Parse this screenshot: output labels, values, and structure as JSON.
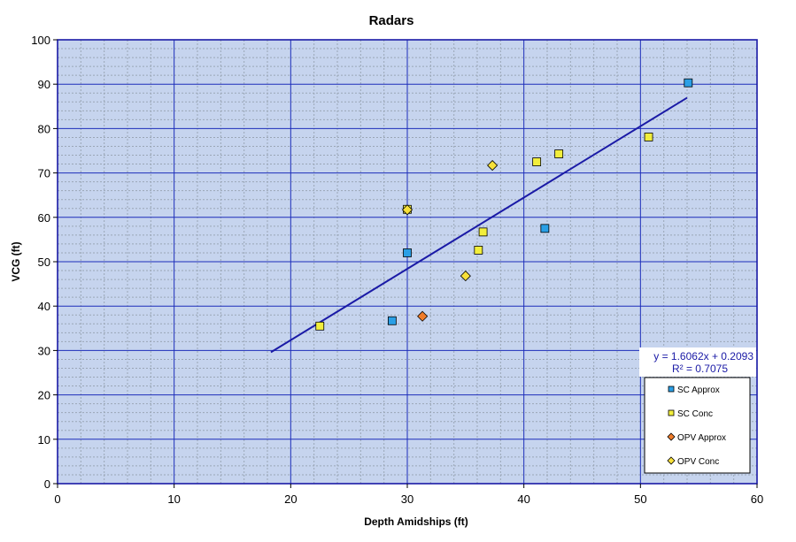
{
  "chart_data": {
    "type": "scatter",
    "title": "Radars",
    "xlabel": "Depth Amidships  (ft)",
    "ylabel": "VCG  (ft)",
    "xlim": [
      0,
      60
    ],
    "ylim": [
      0,
      100
    ],
    "xticks": [
      0,
      10,
      20,
      30,
      40,
      50,
      60
    ],
    "yticks": [
      0,
      10,
      20,
      30,
      40,
      50,
      60,
      70,
      80,
      90,
      100
    ],
    "grid": true,
    "legend_position": "bottom-right",
    "colors": {
      "plot_background": "#c6d4ee",
      "major_grid": "#1c2dba",
      "minor_grid": "#9aa6b6",
      "frame": "#1a1aa6",
      "trendline": "#1a1aa6"
    },
    "series": [
      {
        "name": "SC Approx",
        "marker": "square",
        "color": "#2a9fe6",
        "points": [
          [
            28.7,
            36.7
          ],
          [
            30.0,
            52.0
          ],
          [
            41.8,
            57.5
          ],
          [
            54.1,
            90.3
          ]
        ]
      },
      {
        "name": "SC Conc",
        "marker": "square",
        "color": "#f2ee3c",
        "points": [
          [
            22.5,
            35.5
          ],
          [
            30.0,
            61.8
          ],
          [
            36.1,
            52.6
          ],
          [
            36.5,
            56.7
          ],
          [
            41.1,
            72.5
          ],
          [
            43.0,
            74.3
          ],
          [
            50.7,
            78.1
          ]
        ]
      },
      {
        "name": "OPV Approx",
        "marker": "diamond",
        "color": "#f07c2a",
        "points": [
          [
            31.3,
            37.7
          ]
        ]
      },
      {
        "name": "OPV Conc",
        "marker": "diamond",
        "color": "#f7e03a",
        "points": [
          [
            30.0,
            61.7
          ],
          [
            35.0,
            46.8
          ],
          [
            37.3,
            71.7
          ]
        ]
      }
    ],
    "trendline": {
      "slope": 1.6062,
      "intercept": 0.2093,
      "x_range": [
        18.3,
        54.0
      ],
      "equation": "y = 1.6062x + 0.2093",
      "r_squared": "R² = 0.7075"
    }
  }
}
